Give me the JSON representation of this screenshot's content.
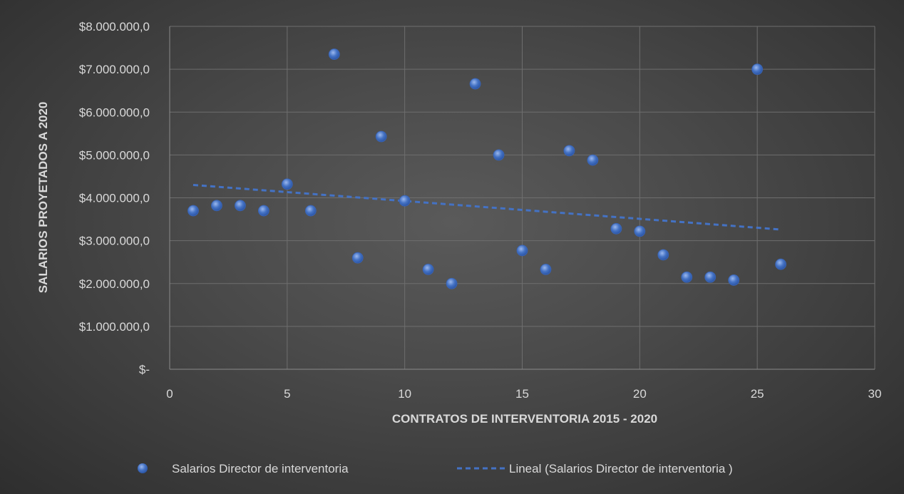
{
  "chart_data": {
    "type": "scatter",
    "xlabel": "CONTRATOS DE INTERVENTORIA 2015 - 2020",
    "ylabel": "SALARIOS PROYETADOS A 2020",
    "xlim": [
      0,
      30
    ],
    "ylim": [
      0,
      8000000
    ],
    "x_ticks": [
      0,
      5,
      10,
      15,
      20,
      25,
      30
    ],
    "x_tick_labels": [
      "0",
      "5",
      "10",
      "15",
      "20",
      "25",
      "30"
    ],
    "y_ticks": [
      0,
      1000000,
      2000000,
      3000000,
      4000000,
      5000000,
      6000000,
      7000000,
      8000000
    ],
    "y_tick_labels": [
      "$-",
      "$1.000.000,0",
      "$2.000.000,0",
      "$3.000.000,0",
      "$4.000.000,0",
      "$5.000.000,0",
      "$6.000.000,0",
      "$7.000.000,0",
      "$8.000.000,0"
    ],
    "grid": true,
    "legend_position": "bottom",
    "series": [
      {
        "name": "Salarios Director de interventoria",
        "color": "#4472c4",
        "points": [
          {
            "x": 1,
            "y": 3700000
          },
          {
            "x": 2,
            "y": 3820000
          },
          {
            "x": 3,
            "y": 3820000
          },
          {
            "x": 4,
            "y": 3700000
          },
          {
            "x": 5,
            "y": 4320000
          },
          {
            "x": 6,
            "y": 3700000
          },
          {
            "x": 7,
            "y": 7350000
          },
          {
            "x": 8,
            "y": 2600000
          },
          {
            "x": 9,
            "y": 5430000
          },
          {
            "x": 10,
            "y": 3930000
          },
          {
            "x": 11,
            "y": 2330000
          },
          {
            "x": 12,
            "y": 2000000
          },
          {
            "x": 13,
            "y": 6660000
          },
          {
            "x": 14,
            "y": 5000000
          },
          {
            "x": 15,
            "y": 2770000
          },
          {
            "x": 16,
            "y": 2330000
          },
          {
            "x": 17,
            "y": 5100000
          },
          {
            "x": 18,
            "y": 4880000
          },
          {
            "x": 19,
            "y": 3280000
          },
          {
            "x": 20,
            "y": 3220000
          },
          {
            "x": 21,
            "y": 2670000
          },
          {
            "x": 22,
            "y": 2150000
          },
          {
            "x": 23,
            "y": 2150000
          },
          {
            "x": 24,
            "y": 2080000
          },
          {
            "x": 25,
            "y": 7000000
          },
          {
            "x": 26,
            "y": 2450000
          }
        ]
      }
    ],
    "trendline": {
      "name": "Lineal (Salarios Director de interventoria )",
      "type": "linear",
      "color": "#4472c4",
      "x": [
        1,
        26
      ],
      "y": [
        4300000,
        3260000
      ]
    }
  }
}
